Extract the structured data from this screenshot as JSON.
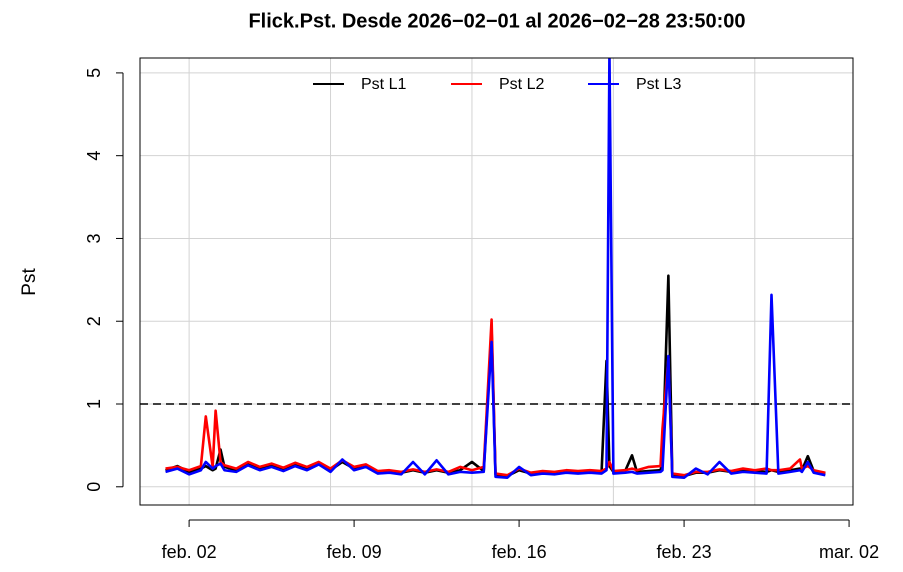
{
  "chart_data": {
    "type": "line",
    "title": "Flick.Pst. Desde  2026−02−01  al  2026−02−28 23:50:00",
    "y_label": "Pst",
    "x": [
      "2026-02-01 00:00",
      "2026-02-01 12:00",
      "2026-02-02 00:00",
      "2026-02-02 12:00",
      "2026-02-02 17:00",
      "2026-02-03 00:00",
      "2026-02-03 03:00",
      "2026-02-03 08:00",
      "2026-02-03 12:00",
      "2026-02-04 00:00",
      "2026-02-04 12:00",
      "2026-02-05 00:00",
      "2026-02-05 12:00",
      "2026-02-06 00:00",
      "2026-02-06 12:00",
      "2026-02-07 00:00",
      "2026-02-07 12:00",
      "2026-02-08 00:00",
      "2026-02-08 12:00",
      "2026-02-09 00:00",
      "2026-02-09 12:00",
      "2026-02-10 00:00",
      "2026-02-10 12:00",
      "2026-02-11 00:00",
      "2026-02-11 12:00",
      "2026-02-12 00:00",
      "2026-02-12 12:00",
      "2026-02-13 00:00",
      "2026-02-13 12:00",
      "2026-02-14 00:00",
      "2026-02-14 12:00",
      "2026-02-14 20:00",
      "2026-02-15 00:00",
      "2026-02-15 12:00",
      "2026-02-16 00:00",
      "2026-02-16 12:00",
      "2026-02-17 00:00",
      "2026-02-17 12:00",
      "2026-02-18 00:00",
      "2026-02-18 12:00",
      "2026-02-19 00:00",
      "2026-02-19 12:00",
      "2026-02-19 17:00",
      "2026-02-19 20:00",
      "2026-02-20 00:00",
      "2026-02-20 12:00",
      "2026-02-20 19:00",
      "2026-02-21 00:00",
      "2026-02-21 12:00",
      "2026-02-22 00:00",
      "2026-02-22 02:00",
      "2026-02-22 08:00",
      "2026-02-22 12:00",
      "2026-02-23 00:00",
      "2026-02-23 12:00",
      "2026-02-24 00:00",
      "2026-02-24 12:00",
      "2026-02-25 00:00",
      "2026-02-25 12:00",
      "2026-02-26 00:00",
      "2026-02-26 12:00",
      "2026-02-26 17:00",
      "2026-02-27 00:00",
      "2026-02-27 12:00",
      "2026-02-27 22:00",
      "2026-02-28 00:00",
      "2026-02-28 06:00",
      "2026-02-28 12:00",
      "2026-02-28 23:50"
    ],
    "series": [
      {
        "name": "Pst L1",
        "color": "#000000",
        "values": [
          0.2,
          0.25,
          0.18,
          0.22,
          0.25,
          0.2,
          0.22,
          0.45,
          0.24,
          0.2,
          0.28,
          0.22,
          0.26,
          0.2,
          0.27,
          0.21,
          0.28,
          0.2,
          0.3,
          0.22,
          0.25,
          0.18,
          0.19,
          0.17,
          0.2,
          0.17,
          0.2,
          0.17,
          0.2,
          0.3,
          0.19,
          1.9,
          0.15,
          0.13,
          0.2,
          0.16,
          0.18,
          0.17,
          0.19,
          0.18,
          0.19,
          0.18,
          1.52,
          0.25,
          0.18,
          0.19,
          0.38,
          0.18,
          0.19,
          0.2,
          0.3,
          2.55,
          0.15,
          0.13,
          0.17,
          0.17,
          0.2,
          0.18,
          0.2,
          0.19,
          0.18,
          0.2,
          0.18,
          0.2,
          0.22,
          0.2,
          0.37,
          0.19,
          0.16
        ]
      },
      {
        "name": "Pst L2",
        "color": "#ff0000",
        "values": [
          0.22,
          0.24,
          0.2,
          0.25,
          0.85,
          0.24,
          0.92,
          0.3,
          0.26,
          0.22,
          0.3,
          0.24,
          0.28,
          0.23,
          0.29,
          0.24,
          0.3,
          0.22,
          0.32,
          0.24,
          0.27,
          0.19,
          0.2,
          0.18,
          0.21,
          0.18,
          0.21,
          0.18,
          0.24,
          0.2,
          0.24,
          2.02,
          0.16,
          0.14,
          0.22,
          0.17,
          0.19,
          0.18,
          0.2,
          0.19,
          0.2,
          0.19,
          0.22,
          0.3,
          0.19,
          0.2,
          0.22,
          0.2,
          0.24,
          0.25,
          0.7,
          1.55,
          0.16,
          0.14,
          0.18,
          0.18,
          0.21,
          0.19,
          0.22,
          0.2,
          0.22,
          0.2,
          0.2,
          0.22,
          0.33,
          0.22,
          0.25,
          0.2,
          0.17
        ]
      },
      {
        "name": "Pst L3",
        "color": "#0000ff",
        "values": [
          0.18,
          0.22,
          0.15,
          0.2,
          0.3,
          0.22,
          0.25,
          0.28,
          0.2,
          0.18,
          0.26,
          0.2,
          0.24,
          0.19,
          0.25,
          0.2,
          0.27,
          0.18,
          0.33,
          0.2,
          0.24,
          0.16,
          0.17,
          0.15,
          0.3,
          0.15,
          0.32,
          0.15,
          0.18,
          0.17,
          0.18,
          1.75,
          0.12,
          0.11,
          0.24,
          0.14,
          0.16,
          0.15,
          0.17,
          0.16,
          0.17,
          0.16,
          0.2,
          5.25,
          0.16,
          0.17,
          0.18,
          0.16,
          0.17,
          0.18,
          0.2,
          1.58,
          0.12,
          0.11,
          0.22,
          0.15,
          0.3,
          0.16,
          0.18,
          0.17,
          0.16,
          2.32,
          0.16,
          0.18,
          0.2,
          0.18,
          0.3,
          0.17,
          0.14
        ]
      }
    ],
    "xlim": [
      "2026-01-30 22:00",
      "2026-03-02 04:00"
    ],
    "xticks": [
      {
        "value": "2026-02-02 00:00",
        "label": "feb. 02"
      },
      {
        "value": "2026-02-09 00:00",
        "label": "feb. 09"
      },
      {
        "value": "2026-02-16 00:00",
        "label": "feb. 16"
      },
      {
        "value": "2026-02-23 00:00",
        "label": "feb. 23"
      },
      {
        "value": "2026-03-02 00:00",
        "label": "mar. 02"
      }
    ],
    "xgrid": [
      "2026-02-02 00:00",
      "2026-02-08 00:00",
      "2026-02-14 00:00",
      "2026-02-20 00:00",
      "2026-02-26 00:00"
    ],
    "ylim": [
      -0.22,
      5.18
    ],
    "yticks": [
      0,
      1,
      2,
      3,
      4,
      5
    ],
    "grid": true,
    "hline": 1,
    "legend": "top"
  }
}
